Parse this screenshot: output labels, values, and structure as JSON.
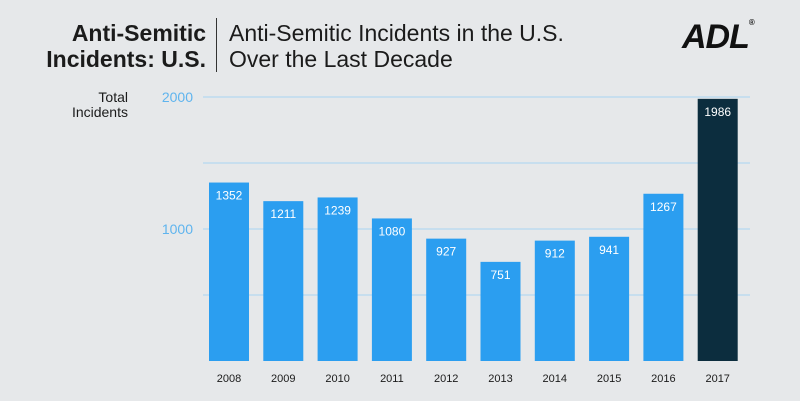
{
  "header": {
    "left_title": [
      "Anti-Semitic",
      "Incidents: U.S."
    ],
    "right_title": [
      "Anti-Semitic Incidents in the U.S.",
      "Over the Last Decade"
    ],
    "logo_text": "ADL"
  },
  "chart_data": {
    "type": "bar",
    "title": "Anti-Semitic Incidents in the U.S. Over the Last Decade",
    "ylabel": [
      "Total",
      "Incidents"
    ],
    "xlabel": "",
    "categories": [
      "2008",
      "2009",
      "2010",
      "2011",
      "2012",
      "2013",
      "2014",
      "2015",
      "2016",
      "2017"
    ],
    "values": [
      1352,
      1211,
      1239,
      1080,
      927,
      751,
      912,
      941,
      1267,
      1986
    ],
    "ylim": [
      0,
      2000
    ],
    "yticks": [
      1000,
      2000
    ],
    "grid": true,
    "colors": {
      "bar": "#2b9ef0",
      "highlight_bar": "#0c2d3e",
      "grid": "#a8d3f3",
      "ytick": "#5fb4ee"
    },
    "highlight_index": 9
  }
}
